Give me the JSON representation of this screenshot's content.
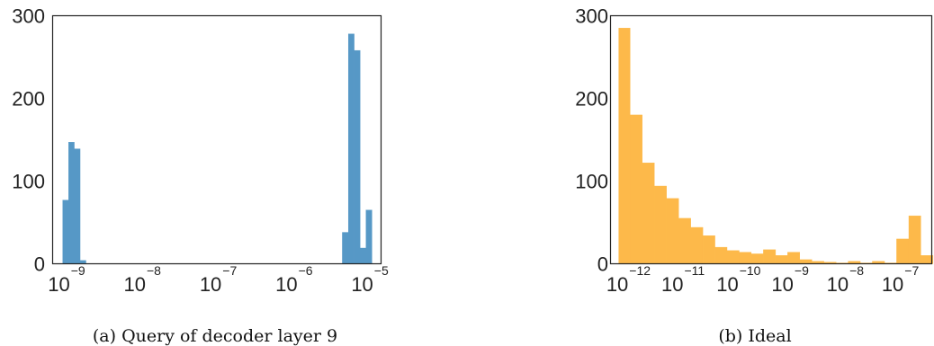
{
  "chart_data": [
    {
      "type": "bar",
      "caption": "(a) Query of decoder layer 9",
      "x_scale": "log",
      "x_tick_labels": [
        {
          "base": "10",
          "exp": "−9"
        },
        {
          "base": "10",
          "exp": "−8"
        },
        {
          "base": "10",
          "exp": "−7"
        },
        {
          "base": "10",
          "exp": "−6"
        },
        {
          "base": "10",
          "exp": "−5"
        }
      ],
      "y_tick_labels": [
        "0",
        "100",
        "200",
        "300"
      ],
      "ylim": [
        0,
        300
      ],
      "color": "#5698c6",
      "bins": [
        {
          "x0": 7.6e-10,
          "x1": 9.1e-10,
          "value": 77
        },
        {
          "x0": 9.1e-10,
          "x1": 1.08e-09,
          "value": 147
        },
        {
          "x0": 1.08e-09,
          "x1": 1.29e-09,
          "value": 139
        },
        {
          "x0": 1.29e-09,
          "x1": 1.54e-09,
          "value": 4
        },
        {
          "x0": 3.7e-06,
          "x1": 4.45e-06,
          "value": 38
        },
        {
          "x0": 4.45e-06,
          "x1": 5.3e-06,
          "value": 278
        },
        {
          "x0": 5.3e-06,
          "x1": 6.35e-06,
          "value": 258
        },
        {
          "x0": 6.35e-06,
          "x1": 7.6e-06,
          "value": 19
        },
        {
          "x0": 7.6e-06,
          "x1": 9.1e-06,
          "value": 65
        }
      ]
    },
    {
      "type": "bar",
      "caption": "(b) Ideal",
      "x_scale": "log",
      "x_tick_labels": [
        {
          "base": "10",
          "exp": "−12"
        },
        {
          "base": "10",
          "exp": "−11"
        },
        {
          "base": "10",
          "exp": "−10"
        },
        {
          "base": "10",
          "exp": "−9"
        },
        {
          "base": "10",
          "exp": "−8"
        },
        {
          "base": "10",
          "exp": "−7"
        }
      ],
      "y_tick_labels": [
        "0",
        "100",
        "200",
        "300"
      ],
      "ylim": [
        0,
        300
      ],
      "color": "#fdb94a",
      "bins": [
        {
          "x0": 6.2e-13,
          "x1": 1e-12,
          "value": 285
        },
        {
          "x0": 1e-12,
          "x1": 1.66e-12,
          "value": 180
        },
        {
          "x0": 1.66e-12,
          "x1": 2.75e-12,
          "value": 122
        },
        {
          "x0": 2.75e-12,
          "x1": 4.57e-12,
          "value": 94
        },
        {
          "x0": 4.57e-12,
          "x1": 7.6e-12,
          "value": 79
        },
        {
          "x0": 7.6e-12,
          "x1": 1.26e-11,
          "value": 55
        },
        {
          "x0": 1.26e-11,
          "x1": 2.09e-11,
          "value": 44
        },
        {
          "x0": 2.09e-11,
          "x1": 3.47e-11,
          "value": 34
        },
        {
          "x0": 3.47e-11,
          "x1": 5.75e-11,
          "value": 20
        },
        {
          "x0": 5.75e-11,
          "x1": 9.55e-11,
          "value": 16
        },
        {
          "x0": 9.55e-11,
          "x1": 1.58e-10,
          "value": 14
        },
        {
          "x0": 1.58e-10,
          "x1": 2.63e-10,
          "value": 12
        },
        {
          "x0": 2.63e-10,
          "x1": 4.37e-10,
          "value": 17
        },
        {
          "x0": 4.37e-10,
          "x1": 7.25e-10,
          "value": 10
        },
        {
          "x0": 7.25e-10,
          "x1": 1.2e-09,
          "value": 14
        },
        {
          "x0": 1.2e-09,
          "x1": 2e-09,
          "value": 5
        },
        {
          "x0": 2e-09,
          "x1": 3.3e-09,
          "value": 3
        },
        {
          "x0": 3.3e-09,
          "x1": 5.5e-09,
          "value": 2
        },
        {
          "x0": 5.5e-09,
          "x1": 9.1e-09,
          "value": 1
        },
        {
          "x0": 9.1e-09,
          "x1": 1.51e-08,
          "value": 3
        },
        {
          "x0": 1.51e-08,
          "x1": 2.5e-08,
          "value": 1
        },
        {
          "x0": 2.5e-08,
          "x1": 4.17e-08,
          "value": 3
        },
        {
          "x0": 4.17e-08,
          "x1": 6.9e-08,
          "value": 1
        },
        {
          "x0": 6.9e-08,
          "x1": 1.15e-07,
          "value": 30
        },
        {
          "x0": 1.15e-07,
          "x1": 1.9e-07,
          "value": 58
        },
        {
          "x0": 1.9e-07,
          "x1": 3.16e-07,
          "value": 10
        }
      ]
    }
  ]
}
